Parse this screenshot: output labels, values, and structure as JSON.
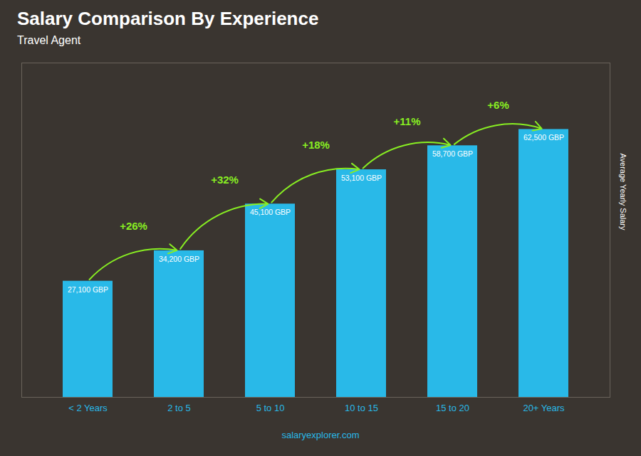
{
  "chart_data": {
    "type": "bar",
    "title": "Salary Comparison By Experience",
    "subtitle": "Travel Agent",
    "caption": "salaryexplorer.com",
    "ylabel": "Average Yearly Salary",
    "categories": [
      "< 2 Years",
      "2 to 5",
      "5 to 10",
      "10 to 15",
      "15 to 20",
      "20+ Years"
    ],
    "values": [
      27100,
      34200,
      45100,
      53100,
      58700,
      62500
    ],
    "value_labels": [
      "27,100 GBP",
      "34,200 GBP",
      "45,100 GBP",
      "53,100 GBP",
      "58,700 GBP",
      "62,500 GBP"
    ],
    "data_labels": true,
    "color": "#29b9e8",
    "ylim": [
      0,
      78000
    ],
    "tick_labels": "x",
    "grid": false,
    "annotations": [
      {
        "text": "+26%",
        "color": "#88ee22"
      },
      {
        "text": "+32%",
        "color": "#88ee22"
      },
      {
        "text": "+18%",
        "color": "#88ee22"
      },
      {
        "text": "+11%",
        "color": "#88ee22"
      },
      {
        "text": "+6%",
        "color": "#88ee22"
      }
    ]
  }
}
